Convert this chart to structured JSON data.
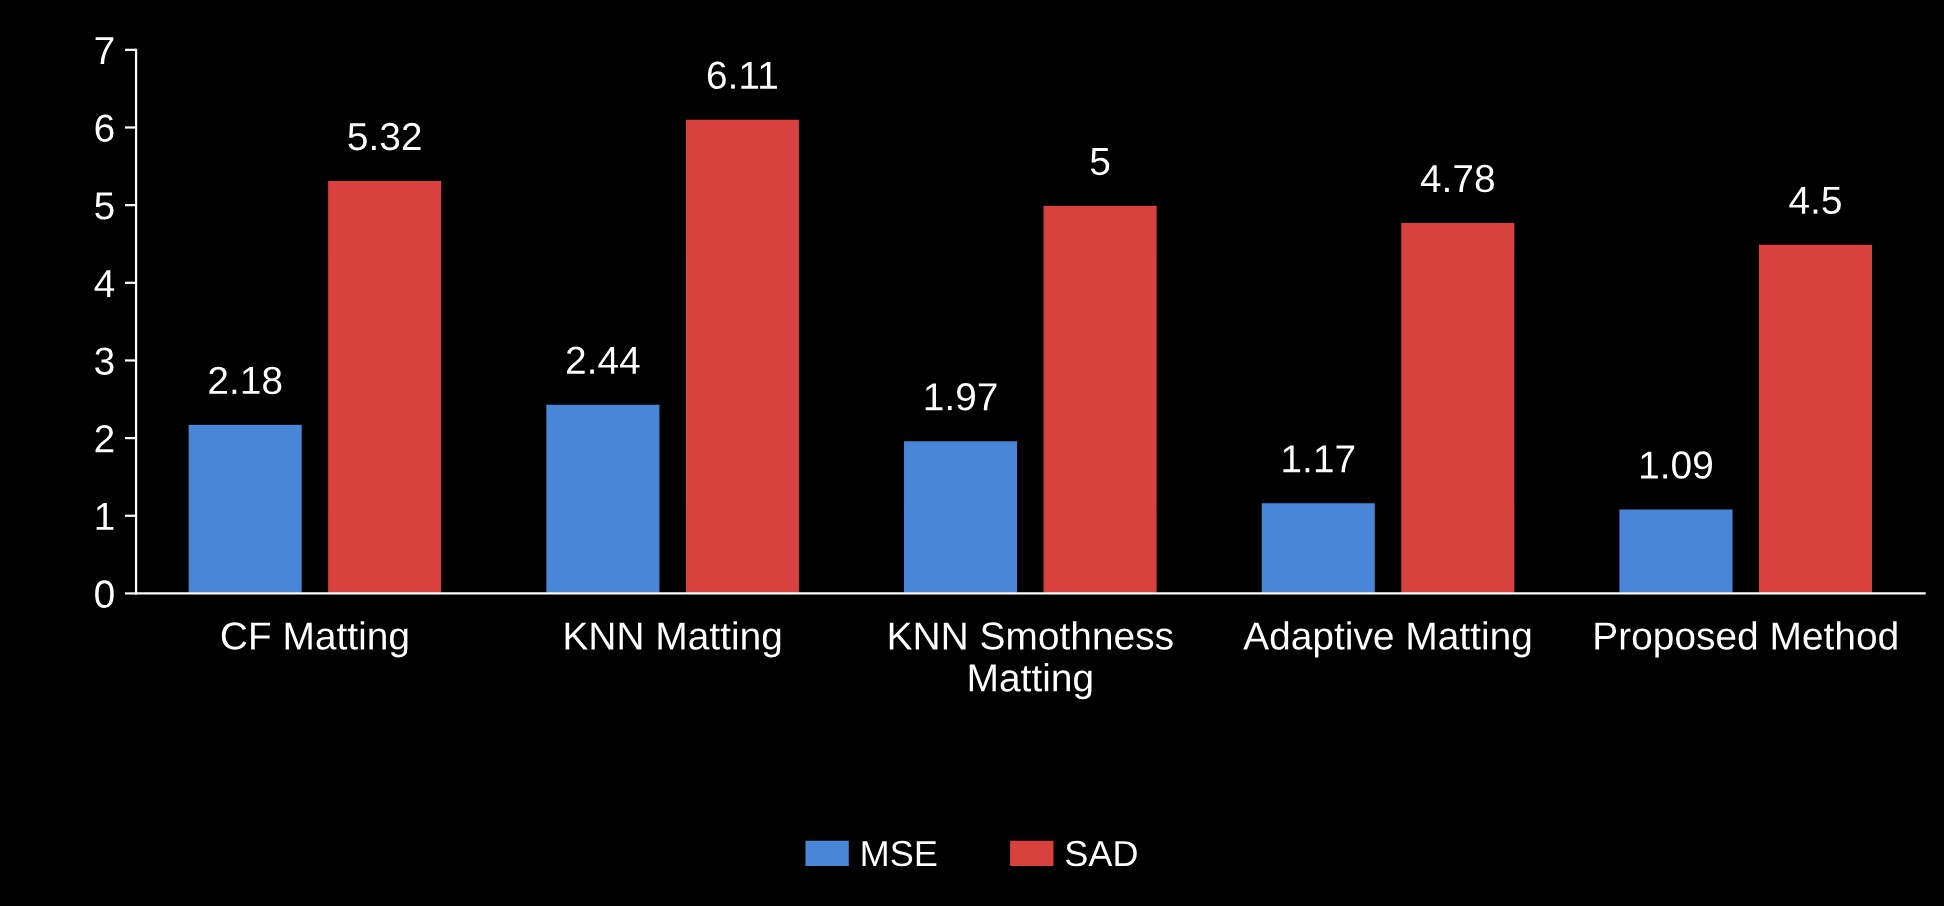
{
  "chart_data": {
    "type": "bar",
    "categories": [
      "CF Matting",
      "KNN Matting",
      "KNN Smothness Matting",
      "Adaptive Matting",
      "Proposed Method"
    ],
    "series": [
      {
        "name": "MSE",
        "color": "#4a86d8",
        "values": [
          2.18,
          2.44,
          1.97,
          1.17,
          1.09
        ]
      },
      {
        "name": "SAD",
        "color": "#d9413f",
        "values": [
          5.32,
          6.11,
          5,
          4.78,
          4.5
        ]
      }
    ],
    "ylim": [
      0,
      7
    ],
    "yticks": [
      0,
      1,
      2,
      3,
      4,
      5,
      6,
      7
    ],
    "grid": false,
    "legend": "bottom",
    "data_labels": true
  }
}
